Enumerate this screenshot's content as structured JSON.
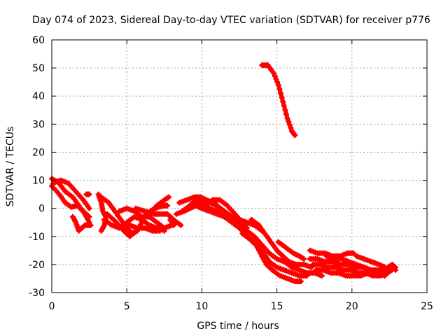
{
  "chart_data": {
    "type": "scatter",
    "title": "Day 074 of 2023, Sidereal Day-to-day VTEC variation (SDTVAR) for receiver p776",
    "xlabel": "GPS time / hours",
    "ylabel": "SDTVAR / TECUs",
    "xlim": [
      0,
      25
    ],
    "ylim": [
      -30,
      60
    ],
    "xticks": [
      0,
      5,
      10,
      15,
      20,
      25
    ],
    "yticks": [
      -30,
      -20,
      -10,
      0,
      10,
      20,
      30,
      40,
      50,
      60
    ],
    "grid": true,
    "marker": "plus",
    "color": "#ff0000",
    "series": [
      {
        "name": "track-1",
        "points": [
          [
            0,
            10.5
          ],
          [
            0.4,
            9.5
          ],
          [
            0.9,
            6
          ],
          [
            1.4,
            4
          ],
          [
            1.8,
            1
          ],
          [
            2.2,
            -2
          ],
          [
            2.5,
            -5
          ]
        ]
      },
      {
        "name": "track-2",
        "points": [
          [
            0,
            8
          ],
          [
            0.5,
            5
          ],
          [
            0.9,
            2
          ],
          [
            1.3,
            0.5
          ],
          [
            1.7,
            1
          ],
          [
            2.1,
            -1
          ],
          [
            2.5,
            -3
          ]
        ]
      },
      {
        "name": "track-3",
        "points": [
          [
            0.1,
            9
          ],
          [
            0.6,
            10
          ],
          [
            1.1,
            9
          ],
          [
            1.6,
            6
          ],
          [
            2.1,
            3
          ],
          [
            2.5,
            0
          ]
        ]
      },
      {
        "name": "track-4",
        "points": [
          [
            1.4,
            -3
          ],
          [
            1.6,
            -5
          ],
          [
            1.8,
            -8
          ],
          [
            2.2,
            -6
          ],
          [
            2.6,
            -6
          ]
        ]
      },
      {
        "name": "track-5",
        "points": [
          [
            2.3,
            5
          ],
          [
            2.5,
            5
          ]
        ]
      },
      {
        "name": "track-6",
        "points": [
          [
            3.1,
            5
          ],
          [
            3.3,
            2
          ],
          [
            3.4,
            -1
          ],
          [
            3.6,
            -3
          ],
          [
            3.5,
            -6
          ],
          [
            3.3,
            -8
          ]
        ]
      },
      {
        "name": "track-7",
        "points": [
          [
            3.3,
            4
          ],
          [
            3.8,
            2
          ],
          [
            4.2,
            -1
          ],
          [
            4.6,
            -4
          ],
          [
            5,
            -7
          ],
          [
            5.4,
            -9
          ],
          [
            5.7,
            -8
          ],
          [
            6,
            -5
          ]
        ]
      },
      {
        "name": "track-8",
        "points": [
          [
            3.7,
            -2
          ],
          [
            4.3,
            -5
          ],
          [
            4.8,
            -8
          ],
          [
            5.2,
            -10
          ],
          [
            5.6,
            -8
          ]
        ]
      },
      {
        "name": "track-9",
        "points": [
          [
            3.5,
            -4
          ],
          [
            4,
            -6
          ],
          [
            4.5,
            -7
          ],
          [
            5,
            -5
          ],
          [
            5.5,
            -3
          ],
          [
            6,
            -4
          ],
          [
            6.5,
            -6
          ],
          [
            7,
            -7
          ],
          [
            7.5,
            -8
          ]
        ]
      },
      {
        "name": "track-10",
        "points": [
          [
            4.5,
            -1
          ],
          [
            5,
            0
          ],
          [
            5.5,
            -1
          ],
          [
            6,
            -3
          ],
          [
            6.5,
            -3
          ],
          [
            7,
            -5
          ],
          [
            7.5,
            -7
          ],
          [
            8,
            -6
          ]
        ]
      },
      {
        "name": "track-11",
        "points": [
          [
            5.2,
            -6
          ],
          [
            5.7,
            -7
          ],
          [
            6.2,
            -7
          ],
          [
            6.7,
            -8
          ],
          [
            7.2,
            -8
          ]
        ]
      },
      {
        "name": "track-12",
        "points": [
          [
            5.6,
            0
          ],
          [
            6.2,
            -1
          ],
          [
            6.8,
            -2
          ],
          [
            7.2,
            -2
          ],
          [
            7.7,
            -2
          ],
          [
            8.1,
            -4
          ],
          [
            8.6,
            -6
          ]
        ]
      },
      {
        "name": "track-13",
        "points": [
          [
            6.3,
            -2
          ],
          [
            6.7,
            -0.5
          ],
          [
            7.1,
            0.5
          ],
          [
            7.5,
            1
          ],
          [
            7.7,
            1
          ]
        ]
      },
      {
        "name": "track-14",
        "points": [
          [
            6.5,
            -2
          ],
          [
            7,
            1
          ],
          [
            7.5,
            3
          ],
          [
            7.8,
            4
          ]
        ]
      },
      {
        "name": "track-15",
        "points": [
          [
            7.9,
            -4
          ],
          [
            8.1,
            -6
          ],
          [
            8.3,
            -5
          ]
        ]
      },
      {
        "name": "track-16",
        "points": [
          [
            8.3,
            -2
          ],
          [
            8.8,
            -1
          ],
          [
            9.2,
            0
          ],
          [
            9.6,
            1
          ],
          [
            10,
            0
          ],
          [
            10.5,
            -1
          ],
          [
            11,
            -2
          ],
          [
            11.5,
            -3
          ],
          [
            12,
            -5
          ]
        ]
      },
      {
        "name": "track-17",
        "points": [
          [
            8.5,
            2
          ],
          [
            9,
            3
          ],
          [
            9.5,
            4
          ],
          [
            9.9,
            4
          ],
          [
            10.3,
            3
          ],
          [
            10.8,
            2
          ],
          [
            11.2,
            0
          ]
        ]
      },
      {
        "name": "track-18",
        "points": [
          [
            8.7,
            -1
          ],
          [
            9.2,
            1
          ],
          [
            9.6,
            3
          ],
          [
            10,
            2
          ],
          [
            10.5,
            0
          ],
          [
            11,
            -1
          ],
          [
            11.5,
            -3
          ],
          [
            12,
            -4
          ],
          [
            12.5,
            -6
          ]
        ]
      },
      {
        "name": "track-19",
        "points": [
          [
            9.5,
            1
          ],
          [
            10,
            2
          ],
          [
            10.5,
            2
          ],
          [
            11,
            1
          ],
          [
            11.5,
            -1
          ],
          [
            12,
            -3
          ],
          [
            12.5,
            -4
          ],
          [
            13,
            -5
          ],
          [
            13.5,
            -6
          ],
          [
            14,
            -8
          ]
        ]
      },
      {
        "name": "track-20",
        "points": [
          [
            10.7,
            3
          ],
          [
            11.2,
            3
          ],
          [
            11.7,
            1
          ],
          [
            12.2,
            -2
          ],
          [
            12.7,
            -5
          ],
          [
            13,
            -7
          ]
        ]
      },
      {
        "name": "track-21",
        "points": [
          [
            11.5,
            -3
          ],
          [
            12,
            -5
          ],
          [
            12.5,
            -7
          ],
          [
            13,
            -10
          ],
          [
            13.5,
            -12
          ],
          [
            14,
            -15
          ],
          [
            14.5,
            -19
          ],
          [
            15,
            -21
          ],
          [
            15.5,
            -22
          ],
          [
            16,
            -23
          ],
          [
            16.5,
            -24
          ],
          [
            17,
            -24
          ]
        ]
      },
      {
        "name": "track-22",
        "points": [
          [
            12.5,
            -5
          ],
          [
            13,
            -8
          ],
          [
            13.5,
            -10
          ],
          [
            14,
            -13
          ],
          [
            14.5,
            -16
          ],
          [
            15,
            -18
          ],
          [
            15.5,
            -19
          ],
          [
            16,
            -21
          ],
          [
            16.5,
            -22
          ],
          [
            17,
            -23
          ],
          [
            17.5,
            -23
          ],
          [
            18,
            -24
          ]
        ]
      },
      {
        "name": "track-23",
        "points": [
          [
            13.3,
            -4
          ],
          [
            13.8,
            -6
          ],
          [
            14.2,
            -9
          ],
          [
            14.6,
            -12
          ],
          [
            15,
            -15
          ],
          [
            15.4,
            -17
          ],
          [
            15.8,
            -19
          ],
          [
            16.3,
            -20
          ],
          [
            16.8,
            -20
          ],
          [
            17.3,
            -21
          ]
        ]
      },
      {
        "name": "track-24",
        "points": [
          [
            12.7,
            -9
          ],
          [
            13.2,
            -11
          ],
          [
            13.6,
            -13
          ],
          [
            14,
            -17
          ],
          [
            14.3,
            -20
          ],
          [
            14.7,
            -22
          ],
          [
            15.2,
            -24
          ],
          [
            15.7,
            -25
          ],
          [
            16.2,
            -26
          ],
          [
            16.6,
            -26
          ]
        ]
      },
      {
        "name": "track-25",
        "points": [
          [
            14,
            51
          ],
          [
            14.4,
            51
          ],
          [
            14.8,
            48
          ],
          [
            15.1,
            44
          ],
          [
            15.4,
            38
          ],
          [
            15.7,
            32
          ],
          [
            16,
            27.5
          ],
          [
            16.2,
            26
          ]
        ]
      },
      {
        "name": "track-26",
        "points": [
          [
            15.1,
            -12
          ],
          [
            15.6,
            -14
          ],
          [
            16.1,
            -16
          ],
          [
            16.5,
            -17
          ],
          [
            16.8,
            -18
          ]
        ]
      },
      {
        "name": "track-27",
        "points": [
          [
            17.2,
            -15
          ],
          [
            17.7,
            -16
          ],
          [
            18.2,
            -16
          ],
          [
            18.7,
            -17
          ],
          [
            19.2,
            -17
          ],
          [
            19.7,
            -16
          ],
          [
            20.1,
            -16
          ]
        ]
      },
      {
        "name": "track-28",
        "points": [
          [
            17.2,
            -18
          ],
          [
            17.7,
            -18
          ],
          [
            18.2,
            -19
          ],
          [
            18.7,
            -19
          ],
          [
            19.2,
            -20
          ],
          [
            19.7,
            -20
          ],
          [
            20.2,
            -21
          ],
          [
            20.7,
            -21
          ],
          [
            21.2,
            -22
          ],
          [
            21.7,
            -22
          ],
          [
            22.2,
            -22
          ],
          [
            22.7,
            -21
          ]
        ]
      },
      {
        "name": "track-29",
        "points": [
          [
            17.4,
            -20
          ],
          [
            17.9,
            -20
          ],
          [
            18.4,
            -21
          ],
          [
            18.9,
            -21
          ],
          [
            19.4,
            -22
          ],
          [
            19.9,
            -22
          ],
          [
            20.4,
            -23
          ],
          [
            20.9,
            -23
          ],
          [
            21.4,
            -24
          ],
          [
            21.9,
            -24
          ],
          [
            22.4,
            -23
          ],
          [
            22.9,
            -21
          ]
        ]
      },
      {
        "name": "track-30",
        "points": [
          [
            17.6,
            -22
          ],
          [
            18.1,
            -22
          ],
          [
            18.6,
            -23
          ],
          [
            19.1,
            -23
          ],
          [
            19.6,
            -24
          ],
          [
            20.1,
            -24
          ],
          [
            20.6,
            -24
          ],
          [
            21.1,
            -23
          ],
          [
            21.6,
            -22
          ]
        ]
      },
      {
        "name": "track-31",
        "points": [
          [
            18.3,
            -17
          ],
          [
            18.8,
            -18
          ],
          [
            19.3,
            -18
          ],
          [
            19.8,
            -19
          ],
          [
            20.3,
            -20
          ],
          [
            20.8,
            -21
          ],
          [
            21.3,
            -22
          ],
          [
            21.8,
            -23
          ],
          [
            22.2,
            -24
          ]
        ]
      },
      {
        "name": "track-32",
        "points": [
          [
            20.3,
            -17
          ],
          [
            20.8,
            -18
          ],
          [
            21.3,
            -19
          ],
          [
            21.8,
            -20
          ],
          [
            22.2,
            -21
          ]
        ]
      },
      {
        "name": "track-33",
        "points": [
          [
            22.4,
            -21
          ],
          [
            22.7,
            -20
          ],
          [
            22.9,
            -22
          ]
        ]
      }
    ]
  }
}
